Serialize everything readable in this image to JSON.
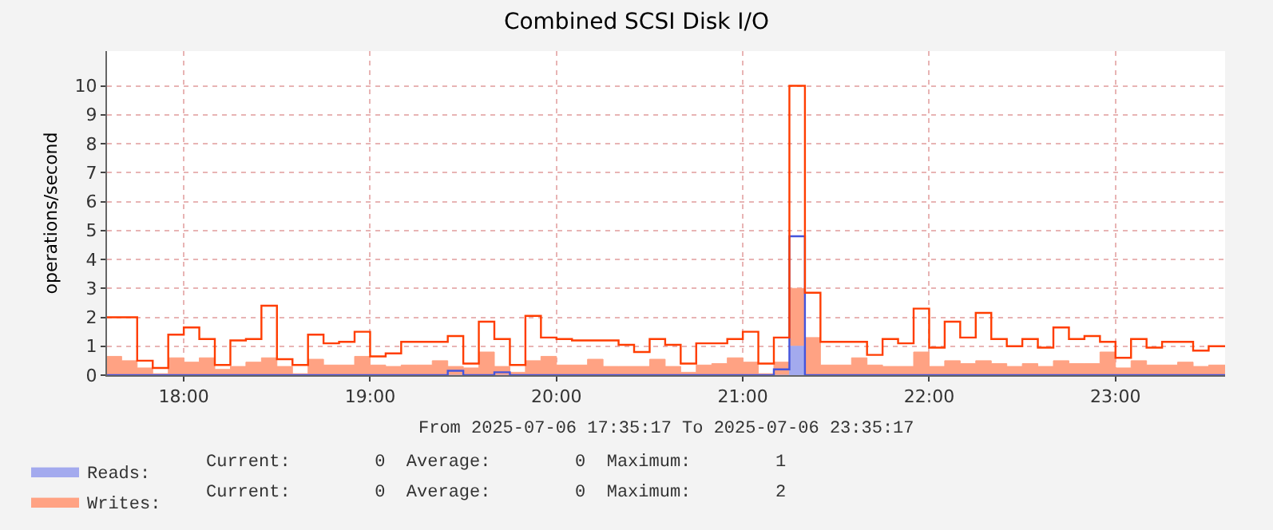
{
  "chart_data": {
    "type": "area",
    "title": "Combined SCSI Disk I/O",
    "ylabel": "operations/second",
    "x": [
      "2025-07-06T17:35:17",
      "2025-07-06T17:40",
      "2025-07-06T17:45",
      "2025-07-06T17:50",
      "2025-07-06T17:55",
      "2025-07-06T18:00",
      "2025-07-06T18:05",
      "2025-07-06T18:10",
      "2025-07-06T18:15",
      "2025-07-06T18:20",
      "2025-07-06T18:25",
      "2025-07-06T18:30",
      "2025-07-06T18:35",
      "2025-07-06T18:40",
      "2025-07-06T18:45",
      "2025-07-06T18:50",
      "2025-07-06T18:55",
      "2025-07-06T19:00",
      "2025-07-06T19:05",
      "2025-07-06T19:10",
      "2025-07-06T19:15",
      "2025-07-06T19:20",
      "2025-07-06T19:25",
      "2025-07-06T19:30",
      "2025-07-06T19:35",
      "2025-07-06T19:40",
      "2025-07-06T19:45",
      "2025-07-06T19:50",
      "2025-07-06T19:55",
      "2025-07-06T20:00",
      "2025-07-06T20:05",
      "2025-07-06T20:10",
      "2025-07-06T20:15",
      "2025-07-06T20:20",
      "2025-07-06T20:25",
      "2025-07-06T20:30",
      "2025-07-06T20:35",
      "2025-07-06T20:40",
      "2025-07-06T20:45",
      "2025-07-06T20:50",
      "2025-07-06T20:55",
      "2025-07-06T21:00",
      "2025-07-06T21:05",
      "2025-07-06T21:10",
      "2025-07-06T21:15",
      "2025-07-06T21:20",
      "2025-07-06T21:25",
      "2025-07-06T21:30",
      "2025-07-06T21:35",
      "2025-07-06T21:40",
      "2025-07-06T21:45",
      "2025-07-06T21:50",
      "2025-07-06T21:55",
      "2025-07-06T22:00",
      "2025-07-06T22:05",
      "2025-07-06T22:10",
      "2025-07-06T22:15",
      "2025-07-06T22:20",
      "2025-07-06T22:25",
      "2025-07-06T22:30",
      "2025-07-06T22:35",
      "2025-07-06T22:40",
      "2025-07-06T22:45",
      "2025-07-06T22:50",
      "2025-07-06T22:55",
      "2025-07-06T23:00",
      "2025-07-06T23:05",
      "2025-07-06T23:10",
      "2025-07-06T23:15",
      "2025-07-06T23:20",
      "2025-07-06T23:25",
      "2025-07-06T23:30",
      "2025-07-06T23:35:17"
    ],
    "stacked": true,
    "line_style": "solid",
    "marker": "none",
    "series": [
      {
        "name": "Reads:",
        "color": "#a3aaee",
        "values": [
          0,
          0,
          0,
          0,
          0,
          0,
          0,
          0,
          0,
          0,
          0,
          0,
          0,
          0,
          0,
          0,
          0,
          0,
          0,
          0,
          0,
          0,
          0,
          0,
          0,
          0,
          0,
          0,
          0,
          0,
          0,
          0,
          0,
          0,
          0,
          0,
          0,
          0,
          0,
          0,
          0,
          0,
          0,
          0,
          1,
          0,
          0,
          0,
          0,
          0,
          0,
          0,
          0,
          0,
          0,
          0,
          0,
          0,
          0,
          0,
          0,
          0,
          0,
          0,
          0,
          0,
          0,
          0,
          0,
          0,
          0,
          0,
          0
        ]
      },
      {
        "name": "Writes:",
        "color": "#ffa283",
        "values": [
          0.65,
          0.5,
          0.25,
          0.05,
          0.6,
          0.45,
          0.6,
          0.2,
          0.3,
          0.45,
          0.6,
          0.3,
          0.05,
          0.55,
          0.35,
          0.35,
          0.65,
          0.35,
          0.3,
          0.35,
          0.35,
          0.5,
          0.3,
          0.25,
          0.8,
          0.3,
          0.1,
          0.5,
          0.65,
          0.35,
          0.35,
          0.55,
          0.3,
          0.3,
          0.3,
          0.55,
          0.3,
          0.1,
          0.35,
          0.4,
          0.6,
          0.45,
          0.05,
          0.45,
          2,
          1.3,
          0.35,
          0.35,
          0.6,
          0.35,
          0.3,
          0.3,
          0.8,
          0.3,
          0.5,
          0.4,
          0.5,
          0.4,
          0.3,
          0.4,
          0.3,
          0.5,
          0.4,
          0.4,
          0.8,
          0.25,
          0.5,
          0.35,
          0.35,
          0.45,
          0.3,
          0.35,
          0.35
        ]
      },
      {
        "type": "step",
        "color": "#4455dd",
        "values": [
          0,
          0,
          0,
          0,
          0,
          0,
          0,
          0,
          0,
          0,
          0,
          0,
          0,
          0,
          0,
          0,
          0,
          0,
          0,
          0,
          0,
          0,
          0.15,
          0,
          0,
          0.1,
          0,
          0,
          0,
          0,
          0,
          0,
          0,
          0,
          0,
          0,
          0,
          0,
          0,
          0,
          0,
          0,
          0,
          0.2,
          4.8,
          0,
          0,
          0,
          0,
          0,
          0,
          0,
          0,
          0,
          0,
          0,
          0,
          0,
          0,
          0,
          0,
          0,
          0,
          0,
          0,
          0,
          0,
          0,
          0,
          0,
          0,
          0,
          0
        ]
      },
      {
        "type": "step",
        "color": "#ff3d00",
        "values": [
          2.0,
          2.0,
          0.5,
          0.25,
          1.4,
          1.65,
          1.25,
          0.35,
          1.2,
          1.25,
          2.4,
          0.55,
          0.35,
          1.4,
          1.1,
          1.15,
          1.5,
          0.65,
          0.75,
          1.15,
          1.15,
          1.15,
          1.35,
          0.4,
          1.85,
          1.25,
          0.35,
          2.05,
          1.3,
          1.25,
          1.2,
          1.2,
          1.2,
          1.05,
          0.8,
          1.25,
          1.05,
          0.4,
          1.1,
          1.1,
          1.25,
          1.5,
          0.4,
          1.3,
          10,
          2.85,
          1.15,
          1.15,
          1.15,
          0.7,
          1.25,
          1.1,
          2.3,
          0.95,
          1.85,
          1.3,
          2.15,
          1.25,
          1.0,
          1.25,
          0.95,
          1.65,
          1.25,
          1.35,
          1.15,
          0.6,
          1.25,
          0.95,
          1.15,
          1.15,
          0.85,
          1.0,
          1.0
        ]
      }
    ],
    "xlim": [
      "2025-07-06T17:35:17",
      "2025-07-06T23:35:17"
    ],
    "xticks": [
      {
        "value": "2025-07-06T18:00",
        "label": "18:00"
      },
      {
        "value": "2025-07-06T19:00",
        "label": "19:00"
      },
      {
        "value": "2025-07-06T20:00",
        "label": "20:00"
      },
      {
        "value": "2025-07-06T21:00",
        "label": "21:00"
      },
      {
        "value": "2025-07-06T22:00",
        "label": "22:00"
      },
      {
        "value": "2025-07-06T23:00",
        "label": "23:00"
      }
    ],
    "ylim": [
      0,
      11.2
    ],
    "yticks": [
      0,
      1,
      2,
      3,
      4,
      5,
      6,
      7,
      8,
      9,
      10
    ],
    "grid": true,
    "legend": "bottom left",
    "annotations": [
      "From 2025-07-06 17:35:17 To 2025-07-06 23:35:17",
      "Current:        0  Average:        0  Maximum:        1",
      "Current:        0  Average:        0  Maximum:        2"
    ]
  }
}
